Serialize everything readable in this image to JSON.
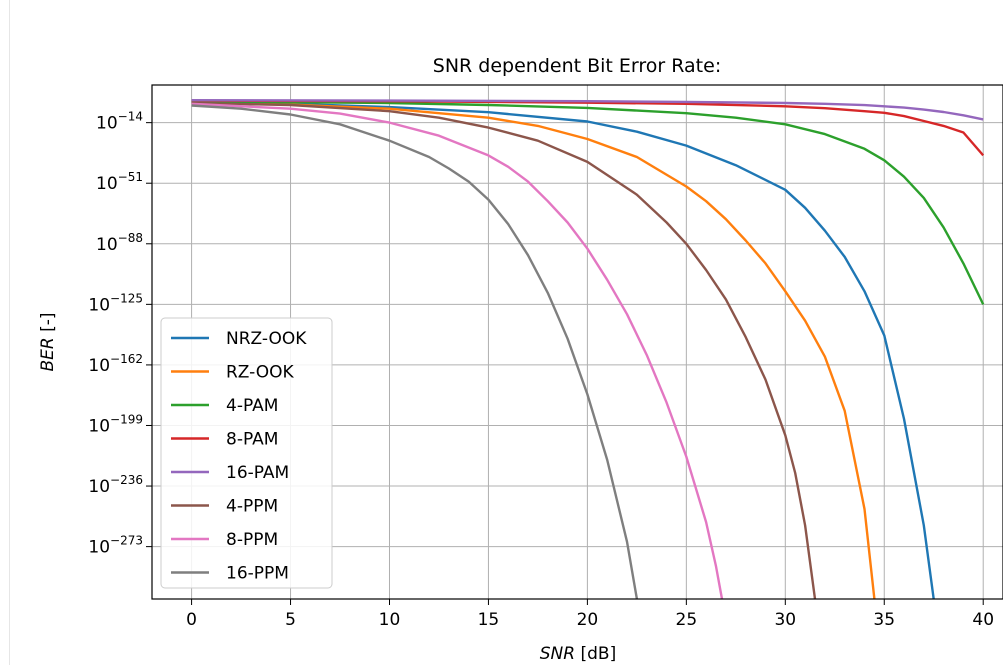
{
  "chart_data": {
    "type": "line",
    "title": "SNR dependent Bit Error Rate:",
    "xlabel": "SNR [dB]",
    "ylabel": "BER [-]",
    "xlabel_parts": {
      "italic": "SNR",
      "rest": " [dB]"
    },
    "ylabel_parts": {
      "italic": "BER",
      "rest": " [-]"
    },
    "xlim": [
      -2,
      41
    ],
    "xticks": [
      0,
      5,
      10,
      15,
      20,
      25,
      30,
      35,
      40
    ],
    "ylim_log10": [
      -305,
      9
    ],
    "yscale": "log",
    "yticks": [
      {
        "exp": -14,
        "base": "10",
        "sup": "−14"
      },
      {
        "exp": -51,
        "base": "10",
        "sup": "−51"
      },
      {
        "exp": -88,
        "base": "10",
        "sup": "−88"
      },
      {
        "exp": -125,
        "base": "10",
        "sup": "−125"
      },
      {
        "exp": -162,
        "base": "10",
        "sup": "−162"
      },
      {
        "exp": -199,
        "base": "10",
        "sup": "−199"
      },
      {
        "exp": -236,
        "base": "10",
        "sup": "−236"
      },
      {
        "exp": -273,
        "base": "10",
        "sup": "−273"
      }
    ],
    "grid": true,
    "legend_position": "lower-left",
    "series": [
      {
        "name": "NRZ-OOK",
        "color": "#1f77b4",
        "x": [
          0,
          5,
          10,
          15,
          20,
          22.5,
          25,
          27.5,
          30,
          31,
          32,
          33,
          34,
          35,
          36,
          37,
          37.5
        ],
        "log10_y": [
          -1.3,
          -2.5,
          -4.5,
          -7.6,
          -13.3,
          -19.5,
          -28,
          -40,
          -55,
          -66,
          -80,
          -96,
          -117,
          -144,
          -195,
          -260,
          -305
        ]
      },
      {
        "name": "RZ-OOK",
        "color": "#ff7f0e",
        "x": [
          0,
          5,
          10,
          15,
          17.5,
          20,
          22.5,
          25,
          26,
          27,
          28,
          29,
          30,
          31,
          32,
          33,
          34,
          34.5
        ],
        "log10_y": [
          -1.5,
          -3,
          -5.5,
          -11,
          -16,
          -24,
          -35,
          -53,
          -62,
          -73,
          -86,
          -100,
          -117,
          -135,
          -157,
          -190,
          -250,
          -305
        ]
      },
      {
        "name": "4-PAM",
        "color": "#2ca02c",
        "x": [
          0,
          5,
          10,
          15,
          20,
          25,
          27.5,
          30,
          32,
          34,
          35,
          36,
          37,
          38,
          39,
          40
        ],
        "log10_y": [
          -1,
          -1.5,
          -2,
          -3.2,
          -5,
          -8.2,
          -11,
          -15,
          -21,
          -30,
          -37,
          -47,
          -60,
          -78,
          -100,
          -125
        ]
      },
      {
        "name": "8-PAM",
        "color": "#d62728",
        "x": [
          0,
          10,
          20,
          25,
          30,
          32,
          34,
          35,
          36,
          37,
          38,
          39,
          40
        ],
        "log10_y": [
          -0.5,
          -0.9,
          -1.8,
          -2.5,
          -4,
          -5.2,
          -7,
          -8,
          -10,
          -13,
          -16,
          -20,
          -34
        ]
      },
      {
        "name": "16-PAM",
        "color": "#9467bd",
        "x": [
          0,
          10,
          20,
          25,
          30,
          32,
          34,
          35,
          36,
          37,
          38,
          39,
          40
        ],
        "log10_y": [
          -0.3,
          -0.5,
          -0.9,
          -1.3,
          -2.0,
          -2.5,
          -3.3,
          -4,
          -4.8,
          -6,
          -7.5,
          -9.5,
          -12
        ]
      },
      {
        "name": "4-PPM",
        "color": "#8c564b",
        "x": [
          0,
          5,
          10,
          12.5,
          15,
          17.5,
          20,
          22.5,
          24,
          25,
          26,
          27,
          28,
          29,
          30,
          30.5,
          31,
          31.5
        ],
        "log10_y": [
          -2,
          -3.2,
          -7,
          -11,
          -17,
          -25,
          -38,
          -58,
          -75,
          -88,
          -104,
          -122,
          -145,
          -171,
          -205,
          -228,
          -260,
          -305
        ]
      },
      {
        "name": "8-PPM",
        "color": "#e377c2",
        "x": [
          0,
          5,
          7.5,
          10,
          12.5,
          15,
          16,
          17,
          18,
          19,
          20,
          21,
          22,
          23,
          24,
          25,
          26,
          26.5,
          26.8
        ],
        "log10_y": [
          -2.5,
          -5.5,
          -8.5,
          -14,
          -22,
          -34,
          -41,
          -50,
          -62,
          -75,
          -91,
          -110,
          -131,
          -156,
          -185,
          -218,
          -258,
          -285,
          -305
        ]
      },
      {
        "name": "16-PPM",
        "color": "#7f7f7f",
        "x": [
          0,
          2.5,
          5,
          7.5,
          10,
          12,
          13,
          14,
          15,
          16,
          17,
          18,
          19,
          20,
          21,
          22,
          22.5
        ],
        "log10_y": [
          -3.5,
          -5.5,
          -9,
          -15,
          -25,
          -35,
          -42,
          -50,
          -61,
          -76,
          -95,
          -118,
          -146,
          -180,
          -220,
          -270,
          -305
        ]
      }
    ]
  }
}
